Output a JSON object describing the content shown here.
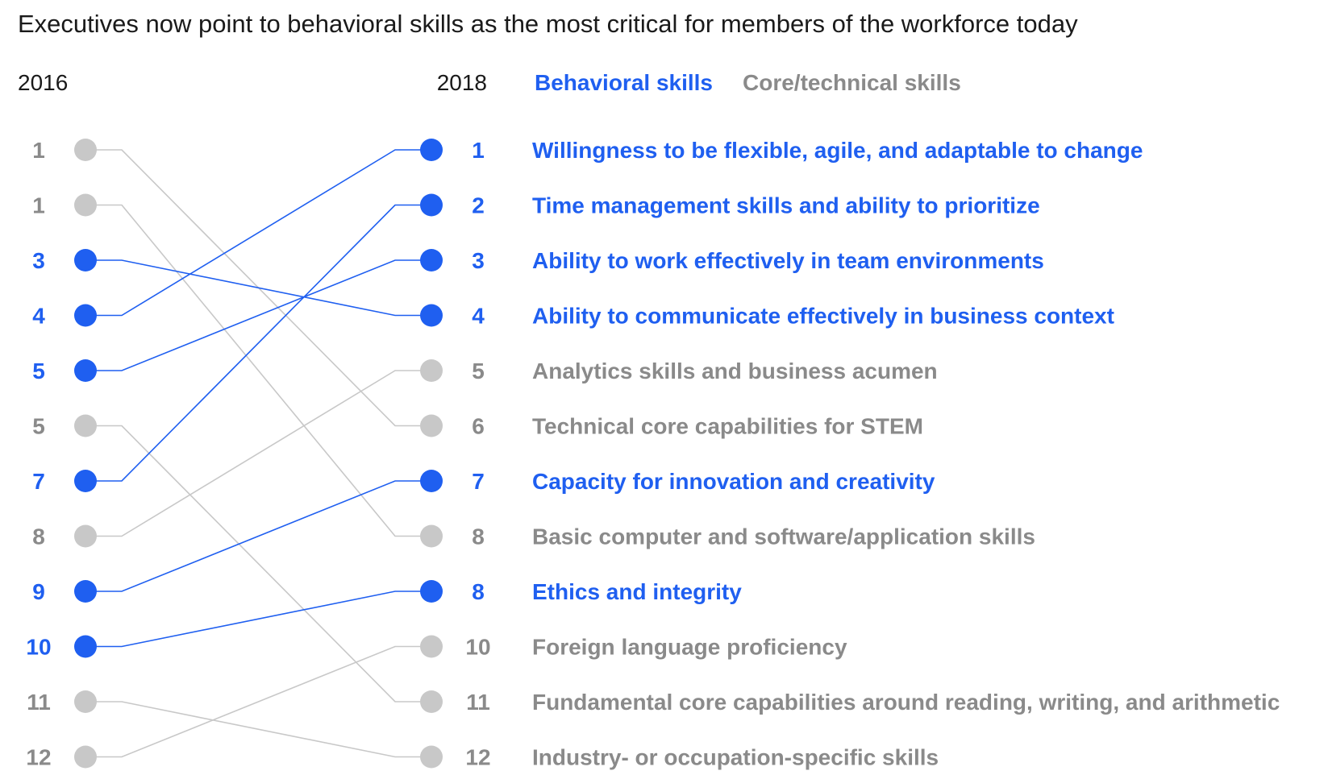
{
  "chart_data": {
    "type": "slope",
    "title": "Executives now point to behavioral skills as the most critical for members of the workforce today",
    "left_year": "2016",
    "right_year": "2018",
    "legend": [
      {
        "name": "Behavioral skills",
        "key": "behavioral"
      },
      {
        "name": "Core/technical skills",
        "key": "core"
      }
    ],
    "colors": {
      "behavioral": "#1f5ff0",
      "core": "#c8c8c8",
      "core_text": "#8a8a8a",
      "title": "#1a1a1a"
    },
    "skills": [
      {
        "label": "Willingness to be flexible, agile, and adaptable to change",
        "category": "behavioral",
        "rank_2016": "4",
        "rank_2018": "1",
        "pos_2016": 3,
        "pos_2018": 0
      },
      {
        "label": "Time management skills and ability to prioritize",
        "category": "behavioral",
        "rank_2016": "7",
        "rank_2018": "2",
        "pos_2016": 6,
        "pos_2018": 1
      },
      {
        "label": "Ability to work effectively in team environments",
        "category": "behavioral",
        "rank_2016": "5",
        "rank_2018": "3",
        "pos_2016": 4,
        "pos_2018": 2
      },
      {
        "label": "Ability to communicate effectively in business context",
        "category": "behavioral",
        "rank_2016": "3",
        "rank_2018": "4",
        "pos_2016": 2,
        "pos_2018": 3
      },
      {
        "label": "Analytics skills and business acumen",
        "category": "core",
        "rank_2016": "8",
        "rank_2018": "5",
        "pos_2016": 7,
        "pos_2018": 4
      },
      {
        "label": "Technical core capabilities for STEM",
        "category": "core",
        "rank_2016": "1",
        "rank_2018": "6",
        "pos_2016": 0,
        "pos_2018": 5
      },
      {
        "label": "Capacity for innovation and creativity",
        "category": "behavioral",
        "rank_2016": "9",
        "rank_2018": "7",
        "pos_2016": 8,
        "pos_2018": 6
      },
      {
        "label": "Basic computer and software/application skills",
        "category": "core",
        "rank_2016": "1",
        "rank_2018": "8",
        "pos_2016": 1,
        "pos_2018": 7
      },
      {
        "label": "Ethics and integrity",
        "category": "behavioral",
        "rank_2016": "10",
        "rank_2018": "8",
        "pos_2016": 9,
        "pos_2018": 8
      },
      {
        "label": "Foreign language proficiency",
        "category": "core",
        "rank_2016": "12",
        "rank_2018": "10",
        "pos_2016": 11,
        "pos_2018": 9
      },
      {
        "label": "Fundamental core capabilities around reading, writing, and arithmetic",
        "category": "core",
        "rank_2016": "5",
        "rank_2018": "11",
        "pos_2016": 5,
        "pos_2018": 10
      },
      {
        "label": "Industry- or occupation-specific skills",
        "category": "core",
        "rank_2016": "11",
        "rank_2018": "12",
        "pos_2016": 10,
        "pos_2018": 11
      }
    ]
  }
}
